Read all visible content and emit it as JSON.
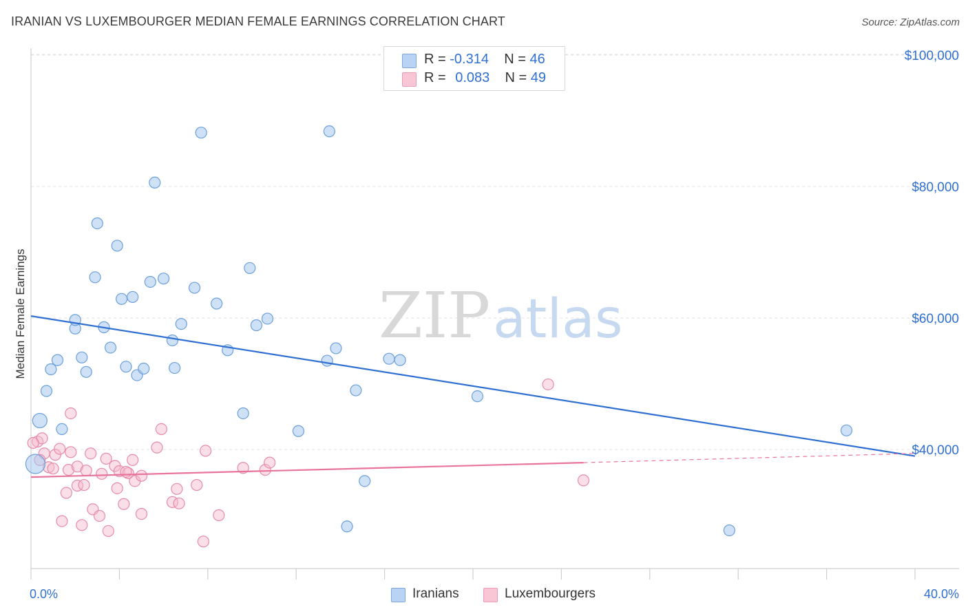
{
  "title": "IRANIAN VS LUXEMBOURGER MEDIAN FEMALE EARNINGS CORRELATION CHART",
  "source": "Source: ZipAtlas.com",
  "watermark": {
    "zip": "ZIP",
    "atlas": "atlas"
  },
  "legend": {
    "rows": [
      {
        "r_label": "R =",
        "r_value": "-0.314",
        "n_label": "N =",
        "n_value": "46",
        "color": "#a8c8f0"
      },
      {
        "r_label": "R =",
        "r_value": "0.083",
        "n_label": "N =",
        "n_value": "49",
        "color": "#f7b9cd"
      }
    ]
  },
  "bottom_legend": [
    "Iranians",
    "Luxembourgers"
  ],
  "chart_data": {
    "type": "scatter",
    "title": "IRANIAN VS LUXEMBOURGER MEDIAN FEMALE EARNINGS CORRELATION CHART",
    "xlabel": "",
    "ylabel": "Median Female Earnings",
    "xlim": [
      0,
      40
    ],
    "ylim": [
      21000,
      102000
    ],
    "x_tick_labels": [
      "0.0%",
      "40.0%"
    ],
    "y_ticks": [
      40000,
      60000,
      80000,
      100000
    ],
    "y_tick_labels": [
      "$40,000",
      "$60,000",
      "$80,000",
      "$100,000"
    ],
    "grid": true,
    "legend_position": "top-center",
    "series": [
      {
        "name": "Iranians",
        "color": "#a8c8f0",
        "stroke": "#6a9fd8",
        "trend": {
          "x": [
            0,
            40
          ],
          "y": [
            60300,
            39000
          ],
          "color": "#2f6fd1"
        },
        "points": [
          [
            0.4,
            44400
          ],
          [
            0.7,
            48900
          ],
          [
            1.4,
            43100
          ],
          [
            0.9,
            52200
          ],
          [
            1.2,
            53600
          ],
          [
            2.0,
            58400
          ],
          [
            2.0,
            59700
          ],
          [
            2.3,
            54000
          ],
          [
            2.5,
            51800
          ],
          [
            2.9,
            66200
          ],
          [
            3.0,
            74400
          ],
          [
            3.3,
            58600
          ],
          [
            3.6,
            55500
          ],
          [
            3.9,
            71000
          ],
          [
            4.1,
            62900
          ],
          [
            4.3,
            52600
          ],
          [
            4.6,
            63200
          ],
          [
            4.8,
            51300
          ],
          [
            5.1,
            52300
          ],
          [
            5.4,
            65500
          ],
          [
            5.6,
            80600
          ],
          [
            6.0,
            66000
          ],
          [
            6.4,
            56600
          ],
          [
            6.5,
            52400
          ],
          [
            6.8,
            59100
          ],
          [
            7.4,
            64600
          ],
          [
            7.7,
            88200
          ],
          [
            8.4,
            62200
          ],
          [
            8.9,
            55100
          ],
          [
            9.6,
            45500
          ],
          [
            9.9,
            67600
          ],
          [
            10.2,
            58900
          ],
          [
            10.7,
            59900
          ],
          [
            12.1,
            42800
          ],
          [
            13.4,
            53500
          ],
          [
            13.5,
            88400
          ],
          [
            13.8,
            55400
          ],
          [
            14.3,
            28300
          ],
          [
            14.7,
            49000
          ],
          [
            15.1,
            35200
          ],
          [
            16.2,
            53800
          ],
          [
            16.7,
            53600
          ],
          [
            20.2,
            48100
          ],
          [
            31.6,
            27700
          ],
          [
            36.9,
            42900
          ],
          [
            0.2,
            37800
          ]
        ]
      },
      {
        "name": "Luxembourgers",
        "color": "#f7b9cd",
        "stroke": "#e58aa8",
        "trend": {
          "x": [
            0,
            25
          ],
          "y": [
            35800,
            38000
          ],
          "color": "#e8739b",
          "dash_to": 40,
          "dash_to_y": 39400
        },
        "points": [
          [
            0.3,
            41200
          ],
          [
            0.5,
            41700
          ],
          [
            0.6,
            39400
          ],
          [
            0.8,
            37300
          ],
          [
            1.1,
            39200
          ],
          [
            1.3,
            40100
          ],
          [
            1.4,
            29100
          ],
          [
            1.6,
            33400
          ],
          [
            1.7,
            36900
          ],
          [
            1.8,
            39600
          ],
          [
            1.8,
            45500
          ],
          [
            2.1,
            34500
          ],
          [
            2.1,
            37400
          ],
          [
            2.3,
            28500
          ],
          [
            2.4,
            34600
          ],
          [
            2.5,
            36800
          ],
          [
            2.7,
            39400
          ],
          [
            2.8,
            30900
          ],
          [
            3.1,
            29900
          ],
          [
            3.2,
            36300
          ],
          [
            3.4,
            38600
          ],
          [
            3.5,
            27600
          ],
          [
            3.8,
            37500
          ],
          [
            3.9,
            34100
          ],
          [
            4.0,
            36700
          ],
          [
            4.2,
            31700
          ],
          [
            4.4,
            36400
          ],
          [
            4.6,
            38400
          ],
          [
            4.7,
            35200
          ],
          [
            5.0,
            30200
          ],
          [
            5.0,
            36000
          ],
          [
            5.7,
            40300
          ],
          [
            5.9,
            43100
          ],
          [
            6.4,
            32000
          ],
          [
            6.6,
            34000
          ],
          [
            6.7,
            31800
          ],
          [
            7.5,
            34600
          ],
          [
            7.8,
            26000
          ],
          [
            7.9,
            39800
          ],
          [
            8.5,
            30000
          ],
          [
            9.6,
            37200
          ],
          [
            10.6,
            36900
          ],
          [
            10.8,
            38000
          ],
          [
            23.4,
            49900
          ],
          [
            25.0,
            35300
          ],
          [
            0.1,
            41000
          ],
          [
            0.4,
            38400
          ],
          [
            4.3,
            36600
          ],
          [
            1.0,
            37100
          ]
        ]
      }
    ]
  }
}
